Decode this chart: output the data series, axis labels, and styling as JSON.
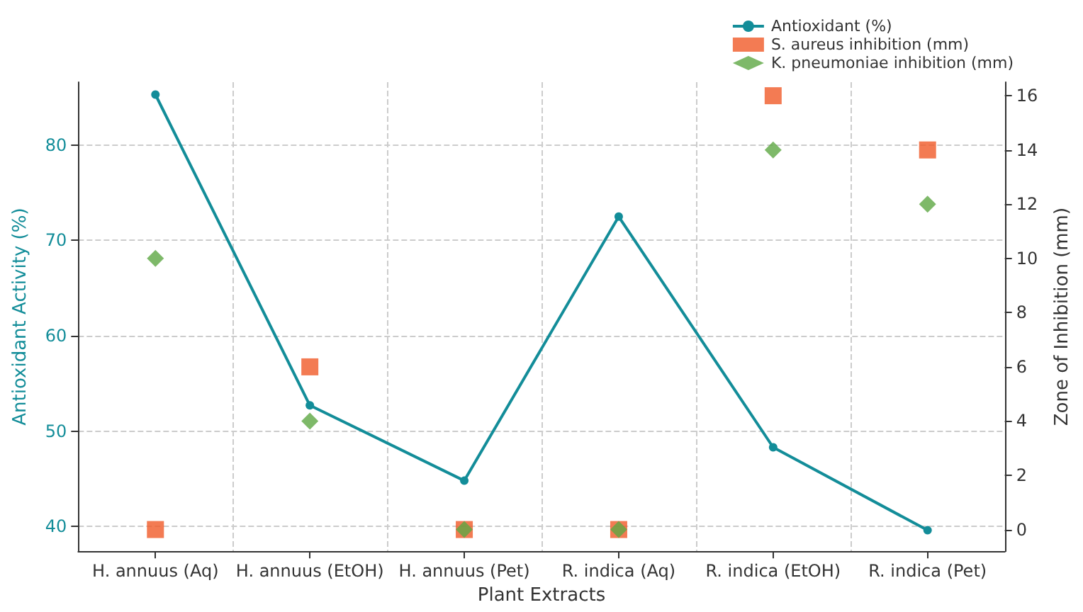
{
  "chart_data": {
    "type": "line",
    "xlabel": "Plant Extracts",
    "ylabel": "Antioxidant Activity (%)",
    "y2label": "Zone of Inhibition (mm)",
    "categories": [
      "H. annuus (Aq)",
      "H. annuus (EtOH)",
      "H. annuus (Pet)",
      "R. indica (Aq)",
      "R. indica (EtOH)",
      "R. indica (Pet)"
    ],
    "series": [
      {
        "name": "Antioxidant (%)",
        "color": "#138d99",
        "marker": "circle",
        "line_style": "solid",
        "values": [
          85.3,
          52.7,
          44.8,
          72.5,
          48.3,
          39.6
        ]
      },
      {
        "name": "S. aureus inhibition (mm)",
        "type": "scatter",
        "axis": "y2",
        "color": "#f05a28",
        "marker": "square",
        "values": [
          0,
          6,
          0,
          0,
          16,
          14
        ]
      },
      {
        "name": "K. pneumoniae inhibition (mm)",
        "type": "scatter",
        "axis": "y2",
        "color": "#5ea844",
        "marker": "diamond",
        "values": [
          10,
          4,
          0,
          0,
          14,
          12
        ]
      }
    ],
    "ylim": [
      37.4,
      86.6
    ],
    "yticks": [
      40,
      50,
      60,
      70,
      80
    ],
    "y2lim": [
      -0.8,
      16.5
    ],
    "y2ticks": [
      0,
      2,
      4,
      6,
      8,
      10,
      12,
      14,
      16
    ],
    "grid": true,
    "legend": "top right"
  }
}
